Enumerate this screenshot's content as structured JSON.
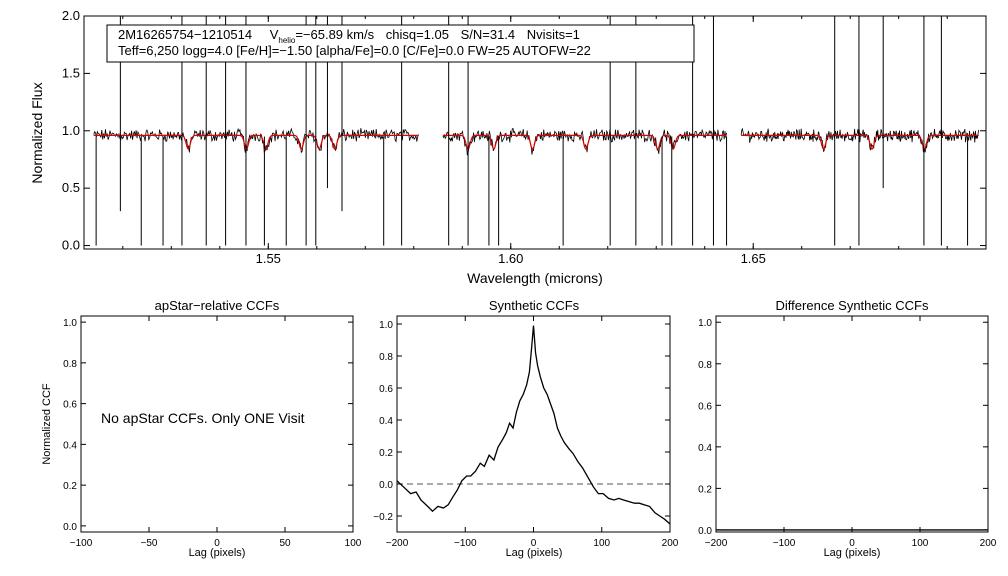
{
  "chart_data": [
    {
      "type": "line",
      "title": "",
      "xlabel": "Wavelength (microns)",
      "ylabel": "Normalized Flux",
      "xlim": [
        1.512,
        1.698
      ],
      "ylim": [
        -0.03,
        2.0
      ],
      "x_ticks": [
        "1.55",
        "1.60",
        "1.65"
      ],
      "y_ticks": [
        "0.0",
        "0.5",
        "1.0",
        "1.5",
        "2.0"
      ],
      "info": {
        "star_id": "2M16265754−1210514",
        "vhelio_prefix": "V",
        "vhelio_sub": "helio",
        "vhelio_value": "=−65.89 km/s",
        "chisq": "chisq=1.05",
        "snr": "S/N=31.4",
        "nvisits": "Nvisits=1",
        "line2": "Teff=6,250 logg=4.0 [Fe/H]=−1.50 [alpha/Fe]=0.0 [C/Fe]=0.0 FW=25 AUTOFW=22"
      },
      "series": [
        {
          "name": "Observed spectrum",
          "color": "#000000"
        },
        {
          "name": "Best-fit model",
          "color": "#dd0000"
        }
      ],
      "chip_ranges": [
        [
          1.514,
          1.581
        ],
        [
          1.586,
          1.6445
        ],
        [
          1.6475,
          1.6965
        ]
      ],
      "continuum_level": 0.96,
      "absorption_lines": [
        1.5335,
        1.5455,
        1.5495,
        1.5568,
        1.5605,
        1.5637,
        1.5912,
        1.5965,
        1.6045,
        1.6155,
        1.6303,
        1.6335,
        1.6645,
        1.6745,
        1.6853
      ],
      "spikes": [
        {
          "x": 1.5145,
          "low": 0.0,
          "high": 0.95
        },
        {
          "x": 1.5195,
          "low": 0.3,
          "high": 2.0
        },
        {
          "x": 1.5238,
          "low": 0.0,
          "high": 0.95
        },
        {
          "x": 1.5283,
          "low": 0.0,
          "high": 0.95
        },
        {
          "x": 1.5322,
          "low": 0.0,
          "high": 2.0
        },
        {
          "x": 1.5372,
          "low": 0.0,
          "high": 2.0
        },
        {
          "x": 1.5412,
          "low": 0.0,
          "high": 2.0
        },
        {
          "x": 1.5454,
          "low": 0.0,
          "high": 2.0
        },
        {
          "x": 1.5492,
          "low": 0.0,
          "high": 0.95
        },
        {
          "x": 1.5537,
          "low": 0.0,
          "high": 0.95
        },
        {
          "x": 1.5578,
          "low": 0.0,
          "high": 2.0
        },
        {
          "x": 1.5598,
          "low": 0.0,
          "high": 2.0
        },
        {
          "x": 1.5622,
          "low": 0.5,
          "high": 2.0
        },
        {
          "x": 1.5652,
          "low": 0.3,
          "high": 2.0
        },
        {
          "x": 1.5738,
          "low": 0.0,
          "high": 0.95
        },
        {
          "x": 1.5775,
          "low": 0.0,
          "high": 2.0
        },
        {
          "x": 1.5872,
          "low": 0.0,
          "high": 2.0
        },
        {
          "x": 1.5912,
          "low": 0.0,
          "high": 2.0
        },
        {
          "x": 1.5955,
          "low": 0.0,
          "high": 0.95
        },
        {
          "x": 1.5975,
          "low": 0.0,
          "high": 0.95
        },
        {
          "x": 1.6108,
          "low": 0.0,
          "high": 0.95
        },
        {
          "x": 1.6205,
          "low": 0.0,
          "high": 2.0
        },
        {
          "x": 1.6258,
          "low": 0.0,
          "high": 2.0
        },
        {
          "x": 1.6312,
          "low": 0.0,
          "high": 0.95
        },
        {
          "x": 1.6332,
          "low": 0.0,
          "high": 0.95
        },
        {
          "x": 1.6375,
          "low": 0.0,
          "high": 2.0
        },
        {
          "x": 1.6418,
          "low": 0.0,
          "high": 2.0
        },
        {
          "x": 1.6445,
          "low": 0.0,
          "high": 0.95
        },
        {
          "x": 1.6668,
          "low": 0.0,
          "high": 2.0
        },
        {
          "x": 1.6718,
          "low": 0.0,
          "high": 2.0
        },
        {
          "x": 1.6768,
          "low": 0.5,
          "high": 2.0
        },
        {
          "x": 1.6852,
          "low": 0.0,
          "high": 2.0
        },
        {
          "x": 1.6888,
          "low": 0.0,
          "high": 2.0
        },
        {
          "x": 1.6942,
          "low": 0.0,
          "high": 0.95
        }
      ]
    },
    {
      "type": "line",
      "title": "apStar−relative CCFs",
      "xlabel": "Lag (pixels)",
      "ylabel": "Normalized CCF",
      "xlim": [
        -100,
        100
      ],
      "ylim": [
        -0.03,
        1.03
      ],
      "x_ticks": [
        "−100",
        "−50",
        "0",
        "50",
        "100"
      ],
      "y_ticks": [
        "0.0",
        "0.2",
        "0.4",
        "0.6",
        "0.8",
        "1.0"
      ],
      "annotation": "No apStar CCFs.  Only ONE Visit",
      "series": []
    },
    {
      "type": "line",
      "title": "Synthetic CCFs",
      "xlabel": "Lag (pixels)",
      "ylabel": "",
      "xlim": [
        -200,
        200
      ],
      "ylim": [
        -0.3,
        1.05
      ],
      "x_ticks": [
        "−200",
        "−100",
        "0",
        "100",
        "200"
      ],
      "y_ticks": [
        "−0.2",
        "0.0",
        "0.2",
        "0.4",
        "0.6",
        "0.8",
        "1.0"
      ],
      "reference_line": 0.0,
      "series": [
        {
          "name": "CCF",
          "color": "#000000",
          "x": [
            -200,
            -190,
            -180,
            -172,
            -165,
            -155,
            -148,
            -140,
            -132,
            -125,
            -118,
            -112,
            -105,
            -98,
            -92,
            -85,
            -78,
            -72,
            -65,
            -58,
            -52,
            -45,
            -40,
            -35,
            -30,
            -25,
            -20,
            -15,
            -10,
            -6,
            -3,
            0,
            3,
            6,
            10,
            15,
            20,
            25,
            30,
            35,
            40,
            45,
            52,
            58,
            65,
            72,
            80,
            88,
            95,
            102,
            110,
            118,
            125,
            132,
            140,
            148,
            155,
            162,
            170,
            178,
            185,
            192,
            200
          ],
          "y": [
            0.02,
            -0.02,
            -0.06,
            -0.05,
            -0.1,
            -0.14,
            -0.17,
            -0.14,
            -0.15,
            -0.13,
            -0.08,
            -0.04,
            0.02,
            0.05,
            0.05,
            0.08,
            0.13,
            0.11,
            0.18,
            0.15,
            0.23,
            0.28,
            0.32,
            0.38,
            0.35,
            0.45,
            0.52,
            0.56,
            0.62,
            0.7,
            0.84,
            0.99,
            0.82,
            0.74,
            0.67,
            0.6,
            0.56,
            0.5,
            0.44,
            0.35,
            0.3,
            0.26,
            0.22,
            0.19,
            0.14,
            0.1,
            0.04,
            -0.02,
            -0.06,
            -0.06,
            -0.09,
            -0.1,
            -0.09,
            -0.1,
            -0.11,
            -0.12,
            -0.12,
            -0.13,
            -0.14,
            -0.18,
            -0.2,
            -0.22,
            -0.25
          ]
        }
      ]
    },
    {
      "type": "line",
      "title": "Difference Synthetic CCFs",
      "xlabel": "Lag (pixels)",
      "ylabel": "",
      "xlim": [
        -200,
        200
      ],
      "ylim": [
        -0.01,
        1.03
      ],
      "x_ticks": [
        "−200",
        "−100",
        "0",
        "100",
        "200"
      ],
      "y_ticks": [
        "0.0",
        "0.2",
        "0.4",
        "0.6",
        "0.8",
        "1.0"
      ],
      "series": [
        {
          "name": "Difference CCF",
          "color": "#000000",
          "x": [
            -200,
            200
          ],
          "y": [
            0.0,
            0.0
          ]
        }
      ]
    }
  ]
}
